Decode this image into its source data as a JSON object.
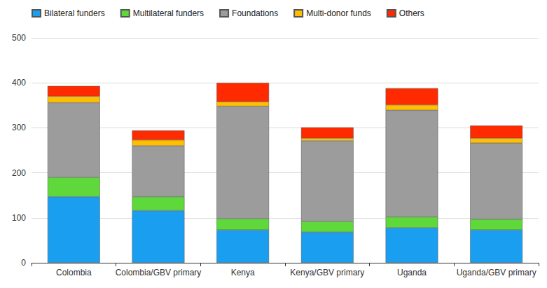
{
  "chart_data": {
    "type": "bar",
    "stacked": true,
    "grid": true,
    "legend": "top",
    "categories": [
      "Colombia",
      "Colombia/GBV primary",
      "Kenya",
      "Kenya/GBV primary",
      "Uganda",
      "Uganda/GBV primary"
    ],
    "series": [
      {
        "name": "Bilateral funders",
        "color": "#1a9ff0",
        "values": [
          147,
          116,
          73,
          68,
          78,
          73
        ]
      },
      {
        "name": "Multilateral funders",
        "color": "#5fd83c",
        "values": [
          43,
          31,
          25,
          24,
          24,
          24
        ]
      },
      {
        "name": "Foundations",
        "color": "#9c9c9c",
        "values": [
          166,
          113,
          250,
          179,
          237,
          169
        ]
      },
      {
        "name": "Multi-donor funds",
        "color": "#ffbf00",
        "values": [
          14,
          13,
          10,
          6,
          12,
          11
        ]
      },
      {
        "name": "Others",
        "color": "#ff2a00",
        "values": [
          23,
          21,
          42,
          24,
          37,
          28
        ]
      }
    ],
    "ylim": [
      0,
      500
    ],
    "yticks": [
      0,
      100,
      200,
      300,
      400,
      500
    ]
  }
}
